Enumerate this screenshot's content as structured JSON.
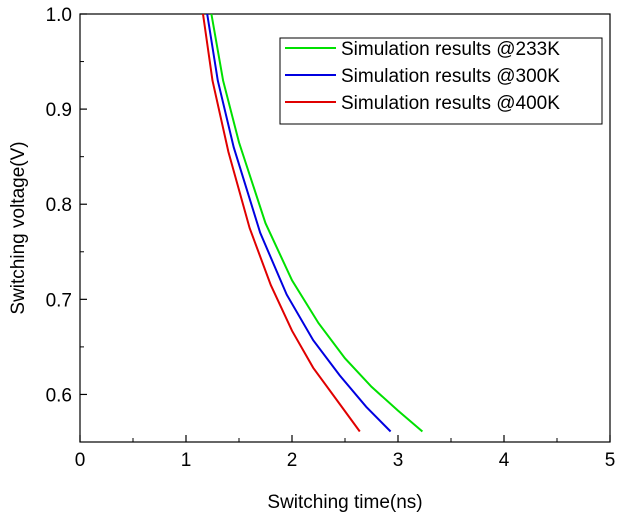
{
  "chart_data": {
    "type": "line",
    "title": "",
    "xlabel": "Switching time(ns)",
    "ylabel": "Switching voltage(V)",
    "xlim": [
      0,
      5
    ],
    "ylim": [
      0.55,
      1.0
    ],
    "x_ticks": [
      "0",
      "1",
      "2",
      "3",
      "4",
      "5"
    ],
    "y_ticks": [
      "0.6",
      "0.7",
      "0.8",
      "0.9",
      "1.0"
    ],
    "grid": false,
    "legend_position": "top-right",
    "series": [
      {
        "name": "Simulation results @233K",
        "color": "#00e000",
        "points": [
          [
            1.24,
            1.0
          ],
          [
            1.35,
            0.93
          ],
          [
            1.5,
            0.865
          ],
          [
            1.75,
            0.78
          ],
          [
            2.0,
            0.72
          ],
          [
            2.25,
            0.675
          ],
          [
            2.5,
            0.638
          ],
          [
            2.75,
            0.608
          ],
          [
            3.0,
            0.583
          ],
          [
            3.23,
            0.561
          ]
        ]
      },
      {
        "name": "Simulation results @300K",
        "color": "#0000e0",
        "points": [
          [
            1.2,
            1.0
          ],
          [
            1.3,
            0.93
          ],
          [
            1.45,
            0.86
          ],
          [
            1.7,
            0.77
          ],
          [
            1.95,
            0.705
          ],
          [
            2.2,
            0.657
          ],
          [
            2.45,
            0.62
          ],
          [
            2.7,
            0.587
          ],
          [
            2.93,
            0.561
          ]
        ]
      },
      {
        "name": "Simulation results @400K",
        "color": "#e00000",
        "points": [
          [
            1.16,
            1.0
          ],
          [
            1.25,
            0.93
          ],
          [
            1.4,
            0.855
          ],
          [
            1.6,
            0.775
          ],
          [
            1.8,
            0.715
          ],
          [
            2.0,
            0.667
          ],
          [
            2.2,
            0.628
          ],
          [
            2.45,
            0.59
          ],
          [
            2.64,
            0.561
          ]
        ]
      }
    ]
  }
}
